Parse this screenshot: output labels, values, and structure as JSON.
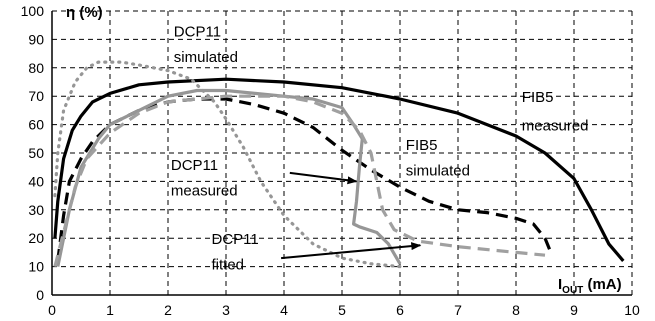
{
  "chart_data": {
    "type": "line",
    "title": "",
    "ylabel": "η (%)",
    "xlabel": {
      "main": "I",
      "sub": "OUT",
      "unit": " (mA)"
    },
    "xlim": [
      0,
      10
    ],
    "ylim": [
      0,
      100
    ],
    "x_ticks": [
      0,
      1,
      2,
      3,
      4,
      5,
      6,
      7,
      8,
      9,
      10
    ],
    "y_ticks": [
      0,
      10,
      20,
      30,
      40,
      50,
      60,
      70,
      80,
      90,
      100
    ],
    "grid": true,
    "series": [
      {
        "key": "fib5-measured",
        "color": "#000000",
        "dash": "solid",
        "points": [
          [
            0.05,
            20
          ],
          [
            0.1,
            33
          ],
          [
            0.2,
            48
          ],
          [
            0.35,
            58
          ],
          [
            0.5,
            63
          ],
          [
            0.7,
            68
          ],
          [
            1,
            71
          ],
          [
            1.5,
            74
          ],
          [
            2,
            75
          ],
          [
            3,
            76
          ],
          [
            4,
            75
          ],
          [
            5,
            73
          ],
          [
            6,
            69
          ],
          [
            7,
            64
          ],
          [
            8,
            56
          ],
          [
            8.5,
            50
          ],
          [
            9,
            41
          ],
          [
            9.3,
            30
          ],
          [
            9.6,
            18
          ],
          [
            9.85,
            12
          ]
        ]
      },
      {
        "key": "fib5-simulated",
        "color": "#000000",
        "dash": "dashed",
        "points": [
          [
            0.1,
            12
          ],
          [
            0.2,
            28
          ],
          [
            0.3,
            40
          ],
          [
            0.5,
            48
          ],
          [
            0.7,
            54
          ],
          [
            1,
            60
          ],
          [
            1.5,
            65
          ],
          [
            2,
            68
          ],
          [
            2.5,
            69
          ],
          [
            3,
            69
          ],
          [
            3.5,
            67
          ],
          [
            4,
            64
          ],
          [
            4.5,
            59
          ],
          [
            5,
            51
          ],
          [
            5.5,
            44
          ],
          [
            6,
            38
          ],
          [
            6.5,
            33
          ],
          [
            7,
            30
          ],
          [
            7.5,
            29
          ],
          [
            8,
            27
          ],
          [
            8.3,
            25
          ],
          [
            8.5,
            20
          ],
          [
            8.6,
            15
          ]
        ]
      },
      {
        "key": "dcp11-simulated",
        "color": "#969696",
        "dash": "dotted",
        "points": [
          [
            0.05,
            35
          ],
          [
            0.1,
            50
          ],
          [
            0.2,
            65
          ],
          [
            0.4,
            75
          ],
          [
            0.6,
            80
          ],
          [
            0.8,
            82
          ],
          [
            1.2,
            82
          ],
          [
            1.5,
            81
          ],
          [
            2,
            79
          ],
          [
            2.4,
            76
          ],
          [
            2.8,
            68
          ],
          [
            3,
            62
          ],
          [
            3.3,
            52
          ],
          [
            3.6,
            40
          ],
          [
            4,
            28
          ],
          [
            4.5,
            18
          ],
          [
            5,
            13
          ],
          [
            5.5,
            11
          ],
          [
            6,
            10
          ]
        ]
      },
      {
        "key": "dcp11-measured",
        "color": "#969696",
        "dash": "solid",
        "points": [
          [
            0.1,
            10
          ],
          [
            0.3,
            30
          ],
          [
            0.5,
            45
          ],
          [
            0.8,
            55
          ],
          [
            1,
            60
          ],
          [
            1.5,
            65
          ],
          [
            2,
            70
          ],
          [
            2.5,
            72
          ],
          [
            3,
            72
          ],
          [
            3.5,
            71
          ],
          [
            4,
            70
          ],
          [
            4.5,
            69
          ],
          [
            5,
            66
          ],
          [
            5.2,
            60
          ],
          [
            5.35,
            55
          ],
          [
            5.3,
            45
          ],
          [
            5.25,
            33
          ],
          [
            5.2,
            25
          ],
          [
            5.3,
            24
          ],
          [
            5.6,
            22
          ],
          [
            5.8,
            18
          ],
          [
            6,
            11
          ]
        ]
      },
      {
        "key": "dcp11-fitted",
        "color": "#a0a0a0",
        "dash": "dashed",
        "points": [
          [
            0.05,
            10
          ],
          [
            0.2,
            22
          ],
          [
            0.4,
            38
          ],
          [
            0.6,
            48
          ],
          [
            1,
            57
          ],
          [
            1.5,
            64
          ],
          [
            2,
            68
          ],
          [
            2.5,
            69
          ],
          [
            3,
            70
          ],
          [
            3.5,
            70
          ],
          [
            4,
            70
          ],
          [
            4.5,
            68
          ],
          [
            5,
            64
          ],
          [
            5.3,
            58
          ],
          [
            5.5,
            50
          ],
          [
            5.6,
            40
          ],
          [
            5.7,
            30
          ],
          [
            5.9,
            23
          ],
          [
            6.3,
            19
          ],
          [
            7,
            17
          ],
          [
            8,
            15
          ],
          [
            8.5,
            14
          ]
        ]
      }
    ],
    "annotations": [
      {
        "key": "dcp11-sim",
        "lines": [
          "DCP11",
          "simulated"
        ],
        "at": [
          2.1,
          91
        ],
        "line_step": 9
      },
      {
        "key": "fib5-meas",
        "lines": [
          "FIB5",
          "measured"
        ],
        "at": [
          8.1,
          68
        ],
        "line_step": 10
      },
      {
        "key": "fib5-sim",
        "lines": [
          "FIB5",
          "simulated"
        ],
        "at": [
          6.1,
          51
        ],
        "line_step": 9
      },
      {
        "key": "dcp11-meas",
        "lines": [
          "DCP11",
          "measured"
        ],
        "at": [
          2.05,
          44
        ],
        "line_step": 9,
        "arrow": {
          "from": [
            4.1,
            43
          ],
          "to": [
            5.25,
            40
          ]
        }
      },
      {
        "key": "dcp11-fit",
        "lines": [
          "DCP11",
          "fitted"
        ],
        "at": [
          2.75,
          18
        ],
        "line_step": 9,
        "arrow": {
          "from": [
            3.95,
            13
          ],
          "to": [
            6.35,
            17.5
          ]
        }
      }
    ]
  }
}
